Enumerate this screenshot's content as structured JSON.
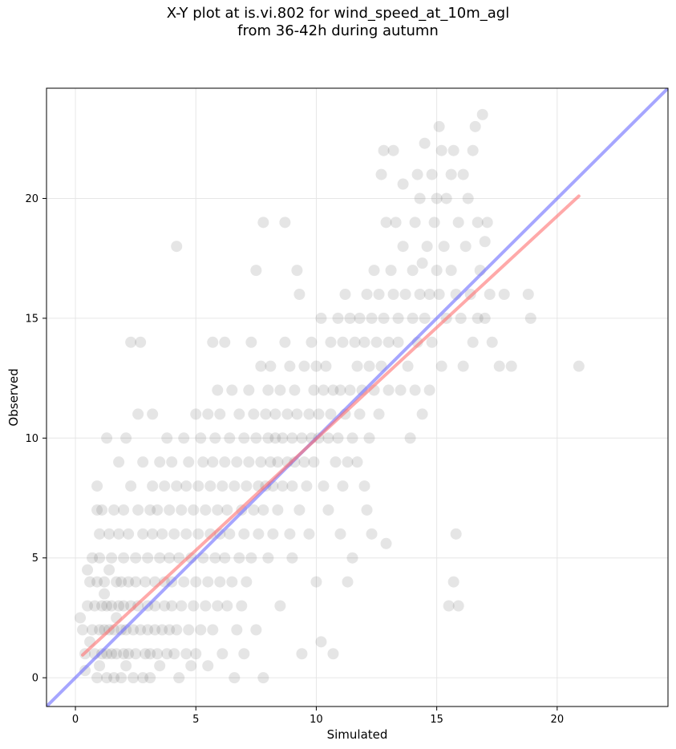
{
  "chart_data": {
    "type": "scatter",
    "title_lines": [
      "X-Y plot at is.vi.802 for wind_speed_at_10m_agl",
      "from 36-42h during autumn"
    ],
    "xlabel": "Simulated",
    "ylabel": "Observed",
    "xlim": [
      -1.2,
      24.6
    ],
    "ylim": [
      -1.2,
      24.6
    ],
    "xticks": [
      0,
      5,
      10,
      15,
      20
    ],
    "yticks": [
      0,
      5,
      10,
      15,
      20
    ],
    "grid": true,
    "colors": {
      "points": "#333333",
      "identity_line": "#6a6aff",
      "fit_line": "#ff7070"
    },
    "identity_line": {
      "x": [
        -1.2,
        24.6
      ],
      "y": [
        -1.2,
        24.6
      ]
    },
    "fit_line": {
      "x": [
        0.3,
        20.9
      ],
      "y": [
        0.95,
        20.1
      ]
    },
    "points": [
      [
        0.2,
        2.5
      ],
      [
        0.3,
        2.0
      ],
      [
        0.4,
        1.0
      ],
      [
        0.4,
        0.3
      ],
      [
        0.5,
        4.5
      ],
      [
        0.5,
        3.0
      ],
      [
        0.6,
        1.5
      ],
      [
        0.6,
        4.0
      ],
      [
        0.7,
        5.0
      ],
      [
        0.7,
        2.0
      ],
      [
        0.8,
        3.0
      ],
      [
        0.8,
        1.0
      ],
      [
        0.9,
        7.0
      ],
      [
        0.9,
        4.0
      ],
      [
        0.9,
        0.0
      ],
      [
        0.9,
        8.0
      ],
      [
        1.0,
        6.0
      ],
      [
        1.0,
        2.0
      ],
      [
        1.0,
        5.0
      ],
      [
        1.0,
        0.5
      ],
      [
        1.1,
        3.0
      ],
      [
        1.1,
        1.0
      ],
      [
        1.1,
        7.0
      ],
      [
        1.2,
        4.0
      ],
      [
        1.2,
        2.0
      ],
      [
        1.2,
        3.5
      ],
      [
        1.3,
        1.0
      ],
      [
        1.3,
        3.0
      ],
      [
        1.3,
        0.0
      ],
      [
        1.3,
        10.0
      ],
      [
        1.4,
        6.0
      ],
      [
        1.4,
        2.0
      ],
      [
        1.4,
        4.5
      ],
      [
        1.5,
        1.0
      ],
      [
        1.5,
        5.0
      ],
      [
        1.5,
        3.0
      ],
      [
        1.6,
        2.0
      ],
      [
        1.6,
        7.0
      ],
      [
        1.6,
        0.0
      ],
      [
        1.7,
        4.0
      ],
      [
        1.7,
        1.0
      ],
      [
        1.7,
        2.5
      ],
      [
        1.8,
        3.0
      ],
      [
        1.8,
        9.0
      ],
      [
        1.8,
        6.0
      ],
      [
        1.9,
        2.0
      ],
      [
        1.9,
        0.0
      ],
      [
        1.9,
        4.0
      ],
      [
        2.0,
        1.0
      ],
      [
        2.0,
        3.0
      ],
      [
        2.0,
        5.0
      ],
      [
        2.0,
        7.0
      ],
      [
        2.1,
        2.0
      ],
      [
        2.1,
        10.0
      ],
      [
        2.1,
        0.5
      ],
      [
        2.2,
        4.0
      ],
      [
        2.2,
        6.0
      ],
      [
        2.2,
        1.0
      ],
      [
        2.3,
        3.0
      ],
      [
        2.3,
        14.0
      ],
      [
        2.3,
        8.0
      ],
      [
        2.4,
        2.0
      ],
      [
        2.4,
        0.0
      ],
      [
        2.5,
        5.0
      ],
      [
        2.5,
        4.0
      ],
      [
        2.5,
        1.0
      ],
      [
        2.6,
        3.0
      ],
      [
        2.6,
        7.0
      ],
      [
        2.6,
        11.0
      ],
      [
        2.7,
        2.0
      ],
      [
        2.7,
        14.0
      ],
      [
        2.8,
        6.0
      ],
      [
        2.8,
        0.0
      ],
      [
        2.8,
        9.0
      ],
      [
        2.9,
        1.0
      ],
      [
        2.9,
        4.0
      ],
      [
        3.0,
        3.0
      ],
      [
        3.0,
        2.0
      ],
      [
        3.0,
        5.0
      ],
      [
        3.1,
        7.0
      ],
      [
        3.1,
        1.0
      ],
      [
        3.1,
        0.0
      ],
      [
        3.2,
        11.0
      ],
      [
        3.2,
        6.0
      ],
      [
        3.2,
        8.0
      ],
      [
        3.3,
        4.0
      ],
      [
        3.3,
        2.0
      ],
      [
        3.3,
        3.0
      ],
      [
        3.4,
        1.0
      ],
      [
        3.4,
        7.0
      ],
      [
        3.5,
        5.0
      ],
      [
        3.5,
        9.0
      ],
      [
        3.5,
        0.5
      ],
      [
        3.6,
        2.0
      ],
      [
        3.6,
        6.0
      ],
      [
        3.7,
        3.0
      ],
      [
        3.7,
        4.0
      ],
      [
        3.7,
        8.0
      ],
      [
        3.8,
        1.0
      ],
      [
        3.8,
        10.0
      ],
      [
        3.9,
        5.0
      ],
      [
        3.9,
        2.0
      ],
      [
        3.9,
        7.0
      ],
      [
        4.0,
        4.0
      ],
      [
        4.0,
        9.0
      ],
      [
        4.0,
        3.0
      ],
      [
        4.1,
        1.0
      ],
      [
        4.1,
        6.0
      ],
      [
        4.2,
        18.0
      ],
      [
        4.2,
        8.0
      ],
      [
        4.2,
        2.0
      ],
      [
        4.3,
        5.0
      ],
      [
        4.3,
        0.0
      ],
      [
        4.4,
        7.0
      ],
      [
        4.4,
        3.0
      ],
      [
        4.5,
        4.0
      ],
      [
        4.5,
        10.0
      ],
      [
        4.6,
        1.0
      ],
      [
        4.6,
        6.0
      ],
      [
        4.6,
        8.0
      ],
      [
        4.7,
        2.0
      ],
      [
        4.7,
        9.0
      ],
      [
        4.8,
        5.0
      ],
      [
        4.8,
        0.5
      ],
      [
        4.9,
        3.0
      ],
      [
        4.9,
        7.0
      ],
      [
        5.0,
        4.0
      ],
      [
        5.0,
        11.0
      ],
      [
        5.0,
        1.0
      ],
      [
        5.1,
        6.0
      ],
      [
        5.1,
        8.0
      ],
      [
        5.2,
        10.0
      ],
      [
        5.2,
        2.0
      ],
      [
        5.3,
        5.0
      ],
      [
        5.3,
        9.0
      ],
      [
        5.4,
        3.0
      ],
      [
        5.4,
        7.0
      ],
      [
        5.5,
        4.0
      ],
      [
        5.5,
        11.0
      ],
      [
        5.5,
        0.5
      ],
      [
        5.6,
        6.0
      ],
      [
        5.6,
        8.0
      ],
      [
        5.7,
        9.0
      ],
      [
        5.7,
        2.0
      ],
      [
        5.7,
        14.0
      ],
      [
        5.8,
        5.0
      ],
      [
        5.8,
        10.0
      ],
      [
        5.9,
        3.0
      ],
      [
        5.9,
        7.0
      ],
      [
        5.9,
        12.0
      ],
      [
        6.0,
        4.0
      ],
      [
        6.0,
        6.0
      ],
      [
        6.0,
        11.0
      ],
      [
        6.1,
        8.0
      ],
      [
        6.1,
        1.0
      ],
      [
        6.2,
        9.0
      ],
      [
        6.2,
        14.0
      ],
      [
        6.2,
        5.0
      ],
      [
        6.3,
        3.0
      ],
      [
        6.3,
        7.0
      ],
      [
        6.4,
        10.0
      ],
      [
        6.4,
        6.0
      ],
      [
        6.5,
        4.0
      ],
      [
        6.5,
        12.0
      ],
      [
        6.6,
        8.0
      ],
      [
        6.6,
        0.0
      ],
      [
        6.7,
        2.0
      ],
      [
        6.7,
        9.0
      ],
      [
        6.8,
        5.0
      ],
      [
        6.8,
        11.0
      ],
      [
        6.9,
        7.0
      ],
      [
        6.9,
        3.0
      ],
      [
        7.0,
        6.0
      ],
      [
        7.0,
        10.0
      ],
      [
        7.0,
        1.0
      ],
      [
        7.1,
        8.0
      ],
      [
        7.1,
        4.0
      ],
      [
        7.2,
        12.0
      ],
      [
        7.2,
        9.0
      ],
      [
        7.3,
        14.0
      ],
      [
        7.3,
        5.0
      ],
      [
        7.4,
        7.0
      ],
      [
        7.4,
        11.0
      ],
      [
        7.5,
        17.0
      ],
      [
        7.5,
        10.0
      ],
      [
        7.5,
        2.0
      ],
      [
        7.6,
        8.0
      ],
      [
        7.6,
        6.0
      ],
      [
        7.7,
        9.0
      ],
      [
        7.7,
        13.0
      ],
      [
        7.8,
        19.0
      ],
      [
        7.8,
        7.0
      ],
      [
        7.8,
        0.0
      ],
      [
        7.9,
        11.0
      ],
      [
        7.9,
        8.0
      ],
      [
        8.0,
        10.0
      ],
      [
        8.0,
        12.0
      ],
      [
        8.0,
        5.0
      ],
      [
        8.1,
        9.0
      ],
      [
        8.1,
        13.0
      ],
      [
        8.2,
        8.0
      ],
      [
        8.2,
        6.0
      ],
      [
        8.3,
        10.0
      ],
      [
        8.3,
        11.0
      ],
      [
        8.4,
        9.0
      ],
      [
        8.4,
        7.0
      ],
      [
        8.5,
        12.0
      ],
      [
        8.5,
        3.0
      ],
      [
        8.6,
        10.0
      ],
      [
        8.6,
        8.0
      ],
      [
        8.7,
        19.0
      ],
      [
        8.7,
        14.0
      ],
      [
        8.8,
        9.0
      ],
      [
        8.8,
        11.0
      ],
      [
        8.9,
        6.0
      ],
      [
        8.9,
        13.0
      ],
      [
        9.0,
        10.0
      ],
      [
        9.0,
        8.0
      ],
      [
        9.0,
        5.0
      ],
      [
        9.1,
        12.0
      ],
      [
        9.1,
        9.0
      ],
      [
        9.2,
        17.0
      ],
      [
        9.2,
        11.0
      ],
      [
        9.3,
        7.0
      ],
      [
        9.3,
        16.0
      ],
      [
        9.4,
        10.0
      ],
      [
        9.4,
        1.0
      ],
      [
        9.5,
        9.0
      ],
      [
        9.5,
        13.0
      ],
      [
        9.6,
        8.0
      ],
      [
        9.7,
        11.0
      ],
      [
        9.7,
        6.0
      ],
      [
        9.8,
        14.0
      ],
      [
        9.8,
        10.0
      ],
      [
        9.9,
        12.0
      ],
      [
        9.9,
        9.0
      ],
      [
        10.0,
        13.0
      ],
      [
        10.0,
        4.0
      ],
      [
        10.1,
        10.0
      ],
      [
        10.1,
        11.0
      ],
      [
        10.2,
        15.0
      ],
      [
        10.2,
        1.5
      ],
      [
        10.3,
        12.0
      ],
      [
        10.3,
        8.0
      ],
      [
        10.4,
        13.0
      ],
      [
        10.5,
        10.0
      ],
      [
        10.5,
        7.0
      ],
      [
        10.6,
        11.0
      ],
      [
        10.6,
        14.0
      ],
      [
        10.7,
        12.0
      ],
      [
        10.7,
        1.0
      ],
      [
        10.8,
        9.0
      ],
      [
        10.9,
        15.0
      ],
      [
        10.9,
        10.0
      ],
      [
        11.0,
        12.0
      ],
      [
        11.0,
        6.0
      ],
      [
        11.1,
        14.0
      ],
      [
        11.1,
        8.0
      ],
      [
        11.2,
        11.0
      ],
      [
        11.2,
        16.0
      ],
      [
        11.3,
        9.0
      ],
      [
        11.3,
        4.0
      ],
      [
        11.4,
        12.0
      ],
      [
        11.4,
        15.0
      ],
      [
        11.5,
        10.0
      ],
      [
        11.5,
        5.0
      ],
      [
        11.6,
        14.0
      ],
      [
        11.7,
        13.0
      ],
      [
        11.7,
        9.0
      ],
      [
        11.8,
        11.0
      ],
      [
        11.8,
        15.0
      ],
      [
        11.9,
        12.0
      ],
      [
        12.0,
        14.0
      ],
      [
        12.0,
        8.0
      ],
      [
        12.1,
        16.0
      ],
      [
        12.1,
        7.0
      ],
      [
        12.2,
        13.0
      ],
      [
        12.2,
        10.0
      ],
      [
        12.3,
        15.0
      ],
      [
        12.3,
        6.0
      ],
      [
        12.4,
        17.0
      ],
      [
        12.4,
        12.0
      ],
      [
        12.5,
        14.0
      ],
      [
        12.6,
        11.0
      ],
      [
        12.6,
        16.0
      ],
      [
        12.7,
        21.0
      ],
      [
        12.7,
        13.0
      ],
      [
        12.8,
        22.0
      ],
      [
        12.8,
        15.0
      ],
      [
        12.9,
        19.0
      ],
      [
        12.9,
        5.6
      ],
      [
        13.0,
        14.0
      ],
      [
        13.0,
        12.0
      ],
      [
        13.1,
        17.0
      ],
      [
        13.2,
        16.0
      ],
      [
        13.2,
        22.0
      ],
      [
        13.3,
        19.0
      ],
      [
        13.4,
        15.0
      ],
      [
        13.4,
        14.0
      ],
      [
        13.5,
        12.0
      ],
      [
        13.6,
        18.0
      ],
      [
        13.6,
        20.6
      ],
      [
        13.7,
        16.0
      ],
      [
        13.8,
        13.0
      ],
      [
        13.9,
        10.0
      ],
      [
        14.0,
        15.0
      ],
      [
        14.0,
        17.0
      ],
      [
        14.1,
        19.0
      ],
      [
        14.1,
        12.0
      ],
      [
        14.2,
        21.0
      ],
      [
        14.2,
        14.0
      ],
      [
        14.3,
        16.0
      ],
      [
        14.3,
        20.0
      ],
      [
        14.4,
        11.0
      ],
      [
        14.4,
        17.3
      ],
      [
        14.5,
        22.3
      ],
      [
        14.5,
        15.0
      ],
      [
        14.6,
        18.0
      ],
      [
        14.7,
        12.0
      ],
      [
        14.7,
        16.0
      ],
      [
        14.8,
        21.0
      ],
      [
        14.8,
        14.0
      ],
      [
        14.9,
        19.0
      ],
      [
        15.0,
        20.0
      ],
      [
        15.0,
        17.0
      ],
      [
        15.1,
        23.0
      ],
      [
        15.1,
        16.0
      ],
      [
        15.2,
        22.0
      ],
      [
        15.2,
        13.0
      ],
      [
        15.3,
        18.0
      ],
      [
        15.4,
        15.0
      ],
      [
        15.4,
        20.0
      ],
      [
        15.5,
        3.0
      ],
      [
        15.6,
        17.0
      ],
      [
        15.6,
        21.0
      ],
      [
        15.7,
        4.0
      ],
      [
        15.7,
        22.0
      ],
      [
        15.8,
        16.0
      ],
      [
        15.8,
        6.0
      ],
      [
        15.9,
        3.0
      ],
      [
        15.9,
        19.0
      ],
      [
        16.0,
        15.0
      ],
      [
        16.1,
        21.0
      ],
      [
        16.1,
        13.0
      ],
      [
        16.2,
        18.0
      ],
      [
        16.3,
        20.0
      ],
      [
        16.4,
        16.0
      ],
      [
        16.5,
        22.0
      ],
      [
        16.5,
        14.0
      ],
      [
        16.6,
        23.0
      ],
      [
        16.7,
        15.0
      ],
      [
        16.7,
        19.0
      ],
      [
        16.8,
        17.0
      ],
      [
        16.9,
        23.5
      ],
      [
        17.0,
        15.0
      ],
      [
        17.0,
        18.2
      ],
      [
        17.1,
        19.0
      ],
      [
        17.2,
        16.0
      ],
      [
        17.3,
        14.0
      ],
      [
        17.6,
        13.0
      ],
      [
        17.8,
        16.0
      ],
      [
        18.1,
        13.0
      ],
      [
        18.8,
        16.0
      ],
      [
        18.9,
        15.0
      ],
      [
        20.9,
        13.0
      ]
    ]
  }
}
